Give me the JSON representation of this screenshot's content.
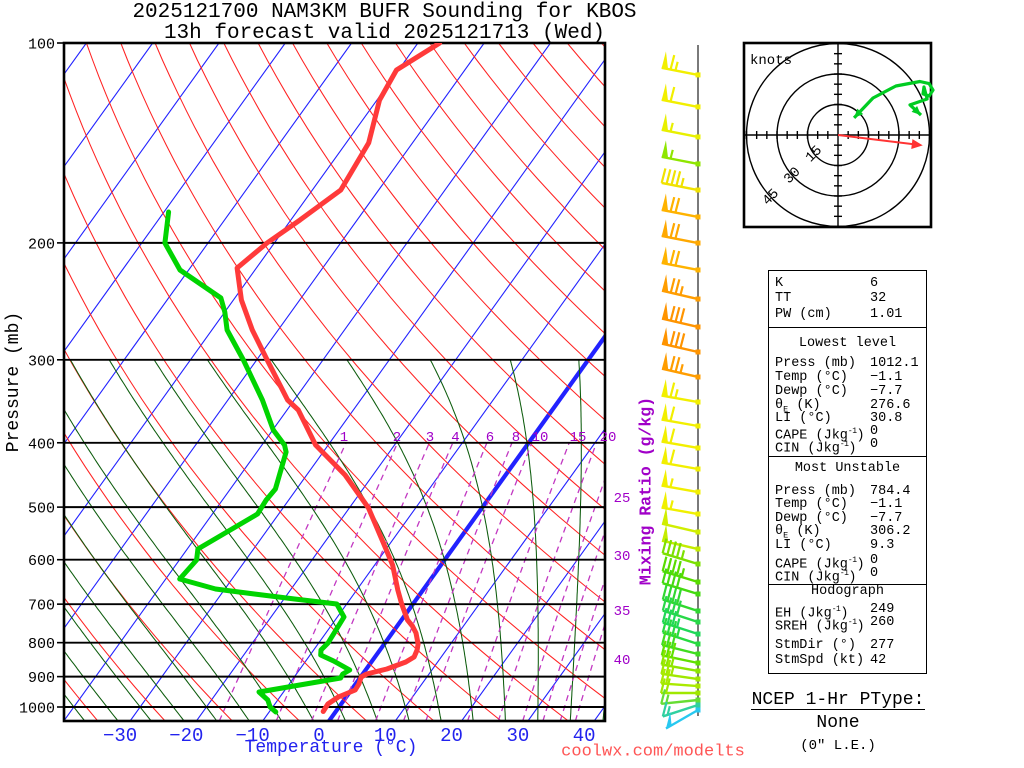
{
  "header": {
    "title_line1": "2025121700 NAM3KM BUFR Sounding for KBOS",
    "title_line2": "13h forecast valid 2025121713 (Wed)"
  },
  "watermark": "coolwx.com/modelts",
  "axes": {
    "pressure_label": "Pressure (mb)",
    "temperature_label": "Temperature (°C)",
    "mixing_label": "Mixing Ratio (g/kg)"
  },
  "hodograph_panel": {
    "unit_label": "knots",
    "ring_labels": [
      "15",
      "30",
      "45"
    ]
  },
  "ptype": {
    "title": "NCEP 1-Hr PType:",
    "value": "None",
    "note": "(0\" L.E.)"
  },
  "panel": {
    "sections": [
      {
        "header": null,
        "rows": [
          [
            "K",
            "6"
          ],
          [
            "TT",
            "32"
          ],
          [
            "PW (cm)",
            "1.01"
          ]
        ]
      },
      {
        "header": "Lowest level",
        "rows": [
          [
            "Press (mb)",
            "1012.1"
          ],
          [
            "Temp (°C)",
            "−1.1"
          ],
          [
            "Dewp (°C)",
            "−7.7"
          ],
          [
            "θE (K)",
            "276.6"
          ],
          [
            "LI (°C)",
            "30.8"
          ],
          [
            "CAPE (Jkg⁻¹)",
            "0"
          ],
          [
            "CIN (Jkg⁻¹)",
            "0"
          ]
        ]
      },
      {
        "header": "Most Unstable",
        "rows": [
          [
            "Press (mb)",
            "784.4"
          ],
          [
            "Temp (°C)",
            "−1.1"
          ],
          [
            "Dewp (°C)",
            "−7.7"
          ],
          [
            "θE (K)",
            "306.2"
          ],
          [
            "LI (°C)",
            "9.3"
          ],
          [
            "CAPE (Jkg⁻¹)",
            "0"
          ],
          [
            "CIN (Jkg⁻¹)",
            "0"
          ]
        ]
      },
      {
        "header": "Hodograph",
        "rows": [
          [
            "EH (Jkg⁻¹)",
            "249"
          ],
          [
            "SREH (Jkg⁻¹)",
            "260"
          ],
          [
            "StmDir (°)",
            "277"
          ],
          [
            "StmSpd (kt)",
            "42"
          ]
        ]
      }
    ]
  },
  "chart_data": {
    "type": "skewt_sounding",
    "station": "KBOS",
    "model": "NAM3KM",
    "init": "2025121700",
    "valid": "2025121713",
    "forecast_hour": 13,
    "pressure_axis": {
      "ticks": [
        100,
        200,
        300,
        400,
        500,
        600,
        700,
        800,
        900,
        1000
      ],
      "range": [
        100,
        1050
      ]
    },
    "temperature_axis": {
      "ticks": [
        -30,
        -20,
        -10,
        0,
        10,
        20,
        30,
        40
      ],
      "range_at_surface": [
        -40,
        41
      ]
    },
    "grid": {
      "isotherm_step_c": 10,
      "isotherm_highlight_c": 0,
      "dry_adiabats_k": [
        235,
        245,
        255,
        265,
        275,
        285,
        295,
        305,
        315,
        325,
        335,
        345,
        355,
        365,
        375,
        385,
        395,
        405,
        415,
        425,
        435,
        445,
        455,
        465
      ],
      "moist_adiabats_c": [
        -40,
        -35,
        -30,
        -25,
        -20,
        -15,
        -10,
        -5,
        0,
        5,
        10,
        15,
        20,
        25,
        30,
        35,
        40
      ],
      "moist_adiabat_top_mb": 300,
      "mixing_ratio_gkg": [
        1,
        2,
        3,
        4,
        6,
        8,
        10,
        15,
        20,
        25,
        30,
        35,
        40
      ],
      "mixing_line_top_mb": 400,
      "mixing_labels_top": [
        "1",
        "2",
        "3",
        "4",
        "6",
        "8",
        "10",
        "15",
        "20"
      ],
      "mixing_labels_right": [
        "25",
        "30",
        "35",
        "40"
      ]
    },
    "temperature_profile_p_t": [
      [
        100.0,
        -56.7
      ],
      [
        109.8,
        -60.3
      ],
      [
        121.9,
        -59.6
      ],
      [
        141.4,
        -56.6
      ],
      [
        166.5,
        -55.7
      ],
      [
        184.7,
        -58.6
      ],
      [
        200.1,
        -61.1
      ],
      [
        218.2,
        -62.9
      ],
      [
        243.8,
        -58.8
      ],
      [
        270.5,
        -53.9
      ],
      [
        300.2,
        -48.4
      ],
      [
        344.9,
        -41.0
      ],
      [
        357.0,
        -38.3
      ],
      [
        403.1,
        -31.9
      ],
      [
        447.3,
        -24.2
      ],
      [
        501.5,
        -17.1
      ],
      [
        576.2,
        -10.2
      ],
      [
        611.1,
        -7.3
      ],
      [
        666.5,
        -3.8
      ],
      [
        699.6,
        -1.7
      ],
      [
        739.6,
        0.9
      ],
      [
        755.1,
        2.3
      ],
      [
        773.7,
        3.6
      ],
      [
        803.7,
        5.1
      ],
      [
        820.6,
        5.6
      ],
      [
        840.8,
        5.9
      ],
      [
        855.5,
        5.2
      ],
      [
        876.5,
        3.1
      ],
      [
        891.9,
        0.6
      ],
      [
        901.2,
        0.1
      ],
      [
        923.3,
        0.5
      ],
      [
        942.8,
        0.6
      ],
      [
        965.9,
        -1.2
      ],
      [
        989.7,
        -2.0
      ],
      [
        1015.7,
        -1.9
      ]
    ],
    "dewpoint_profile_p_t": [
      [
        179.7,
        -79.3
      ],
      [
        200.1,
        -76.5
      ],
      [
        219.7,
        -71.3
      ],
      [
        242.1,
        -62.1
      ],
      [
        254.2,
        -60.0
      ],
      [
        270.5,
        -57.7
      ],
      [
        300.2,
        -52.0
      ],
      [
        344.9,
        -44.8
      ],
      [
        382.7,
        -39.9
      ],
      [
        403.1,
        -36.6
      ],
      [
        413.0,
        -35.6
      ],
      [
        469.6,
        -33.2
      ],
      [
        487.8,
        -33.4
      ],
      [
        512.1,
        -33.2
      ],
      [
        578.2,
        -38.4
      ],
      [
        600.6,
        -37.4
      ],
      [
        641.5,
        -37.9
      ],
      [
        664.2,
        -31.4
      ],
      [
        675.8,
        -25.0
      ],
      [
        687.6,
        -18.4
      ],
      [
        699.6,
        -11.5
      ],
      [
        731.9,
        -9.0
      ],
      [
        801.0,
        -8.6
      ],
      [
        820.6,
        -8.9
      ],
      [
        835.0,
        -8.4
      ],
      [
        852.6,
        -5.8
      ],
      [
        867.5,
        -3.9
      ],
      [
        879.6,
        -2.4
      ],
      [
        891.9,
        -3.0
      ],
      [
        904.3,
        -2.9
      ],
      [
        949.3,
        -13.7
      ],
      [
        976.0,
        -11.5
      ],
      [
        1000.0,
        -10.4
      ],
      [
        1017.5,
        -9.0
      ]
    ],
    "wind_barbs": [
      {
        "p": 111.7,
        "kt": 65,
        "ang": 11,
        "color": "#f2ef00"
      },
      {
        "p": 124.8,
        "kt": 60,
        "ang": 11,
        "color": "#f2ef00"
      },
      {
        "p": 138.5,
        "kt": 55,
        "ang": 11,
        "color": "#e8f000"
      },
      {
        "p": 152.1,
        "kt": 55,
        "ang": 11,
        "color": "#8fe600"
      },
      {
        "p": 166.5,
        "kt": 45,
        "ang": 11,
        "color": "#f0e200"
      },
      {
        "p": 182.8,
        "kt": 70,
        "ang": 11,
        "color": "#ffb300"
      },
      {
        "p": 200.1,
        "kt": 70,
        "ang": 11,
        "color": "#ffa800"
      },
      {
        "p": 219.7,
        "kt": 70,
        "ang": 11,
        "color": "#ffb300"
      },
      {
        "p": 243.0,
        "kt": 75,
        "ang": 13,
        "color": "#ff9d00"
      },
      {
        "p": 267.7,
        "kt": 80,
        "ang": 13,
        "color": "#ff9400"
      },
      {
        "p": 292.0,
        "kt": 80,
        "ang": 13,
        "color": "#ff9400"
      },
      {
        "p": 318.4,
        "kt": 75,
        "ang": 13,
        "color": "#ff9d00"
      },
      {
        "p": 347.3,
        "kt": 65,
        "ang": 10,
        "color": "#f2ef00"
      },
      {
        "p": 377.4,
        "kt": 60,
        "ang": 10,
        "color": "#f2ef00"
      },
      {
        "p": 407.3,
        "kt": 60,
        "ang": 10,
        "color": "#f2ef00"
      },
      {
        "p": 438.1,
        "kt": 60,
        "ang": 10,
        "color": "#f2ef00"
      },
      {
        "p": 474.5,
        "kt": 55,
        "ang": 10,
        "color": "#f2ef00"
      },
      {
        "p": 512.1,
        "kt": 55,
        "ang": 10,
        "color": "#f0f000"
      },
      {
        "p": 545.1,
        "kt": 50,
        "ang": 13,
        "color": "#d0ee00"
      },
      {
        "p": 578.2,
        "kt": 50,
        "ang": 13,
        "color": "#c4ec00"
      },
      {
        "p": 609.0,
        "kt": 45,
        "ang": 17,
        "color": "#7ce000"
      },
      {
        "p": 648.3,
        "kt": 45,
        "ang": 17,
        "color": "#58dc00"
      },
      {
        "p": 675.8,
        "kt": 40,
        "ang": 17,
        "color": "#44da10"
      },
      {
        "p": 716.8,
        "kt": 40,
        "ang": 18,
        "color": "#30d830"
      },
      {
        "p": 744.7,
        "kt": 40,
        "ang": 18,
        "color": "#28d848"
      },
      {
        "p": 776.4,
        "kt": 35,
        "ang": 18,
        "color": "#20d858"
      },
      {
        "p": 803.7,
        "kt": 35,
        "ang": 18,
        "color": "#28da40"
      },
      {
        "p": 832.1,
        "kt": 30,
        "ang": 14,
        "color": "#40dc20"
      },
      {
        "p": 858.5,
        "kt": 30,
        "ang": 12,
        "color": "#60e000"
      },
      {
        "p": 882.6,
        "kt": 25,
        "ang": 10,
        "color": "#8ce600"
      },
      {
        "p": 907.5,
        "kt": 25,
        "ang": 8,
        "color": "#a0e800"
      },
      {
        "p": 929.8,
        "kt": 20,
        "ang": 4,
        "color": "#aaea00"
      },
      {
        "p": 952.6,
        "kt": 20,
        "ang": 0,
        "color": "#a0e800"
      },
      {
        "p": 976.0,
        "kt": 15,
        "ang": -6,
        "color": "#66dd33"
      },
      {
        "p": 993.1,
        "kt": 15,
        "ang": -18,
        "color": "#30d0a0"
      },
      {
        "p": 1010.5,
        "kt": 50,
        "ang": -30,
        "color": "#28c8f0"
      }
    ],
    "hodograph": {
      "unit": "knots",
      "rings_kt": [
        15,
        30,
        45
      ],
      "tick_step_kt": 5,
      "trace_uv_kt": [
        [
          7.9,
          8.4
        ],
        [
          17.2,
          18.2
        ],
        [
          28.5,
          24.1
        ],
        [
          40.3,
          26.3
        ],
        [
          44.8,
          25.3
        ],
        [
          46.7,
          22.1
        ],
        [
          44.8,
          19.2
        ],
        [
          41.8,
          20.2
        ],
        [
          42.3,
          23.6
        ],
        [
          43.8,
          17.7
        ],
        [
          35.4,
          14.8
        ],
        [
          40.8,
          9.8
        ]
      ],
      "storm_motion": {
        "dir_deg": 277,
        "speed_kt": 42
      }
    },
    "colors": {
      "isotherm": "#2222ff",
      "isotherm_highlight": "#2222ff",
      "dry_adiabat": "#ff2222",
      "moist_adiabat": "#0d5c0d",
      "mixing_ratio": "#c238c2",
      "mixing_label": "#a000c8",
      "isobar": "#000000",
      "temperature_trace": "#ff3a3a",
      "dewpoint_trace": "#00d400",
      "barb_staff_line": "#7a7a7a",
      "hodograph_trace": "#00cc22",
      "storm_vector": "#ff3333",
      "temp_axis_text": "#2222ee",
      "watermark": "#ff5555"
    }
  }
}
